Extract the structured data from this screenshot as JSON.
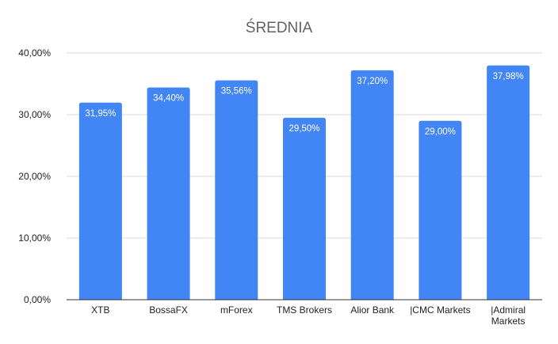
{
  "chart_data": {
    "type": "bar",
    "title": "ŚREDNIA",
    "xlabel": "",
    "ylabel": "",
    "categories": [
      "XTB",
      "BossaFX",
      "mForex",
      "TMS Brokers",
      "Alior Bank",
      "|CMC Markets",
      "|Admiral Markets"
    ],
    "category_lines": [
      [
        "XTB"
      ],
      [
        "BossaFX"
      ],
      [
        "mForex"
      ],
      [
        "TMS Brokers"
      ],
      [
        "Alior Bank"
      ],
      [
        "|CMC Markets"
      ],
      [
        "|Admiral",
        "Markets"
      ]
    ],
    "values": [
      31.95,
      34.4,
      35.56,
      29.5,
      37.2,
      29.0,
      37.98
    ],
    "data_labels": [
      "31,95%",
      "34,40%",
      "35,56%",
      "29,50%",
      "37,20%",
      "29,00%",
      "37,98%"
    ],
    "ylim": [
      0,
      40
    ],
    "yticks": [
      0,
      10,
      20,
      30,
      40
    ],
    "ytick_labels": [
      "0,00%",
      "10,00%",
      "20,00%",
      "30,00%",
      "40,00%"
    ],
    "grid": true,
    "legend": "none",
    "bar_color": "#4285f4"
  }
}
